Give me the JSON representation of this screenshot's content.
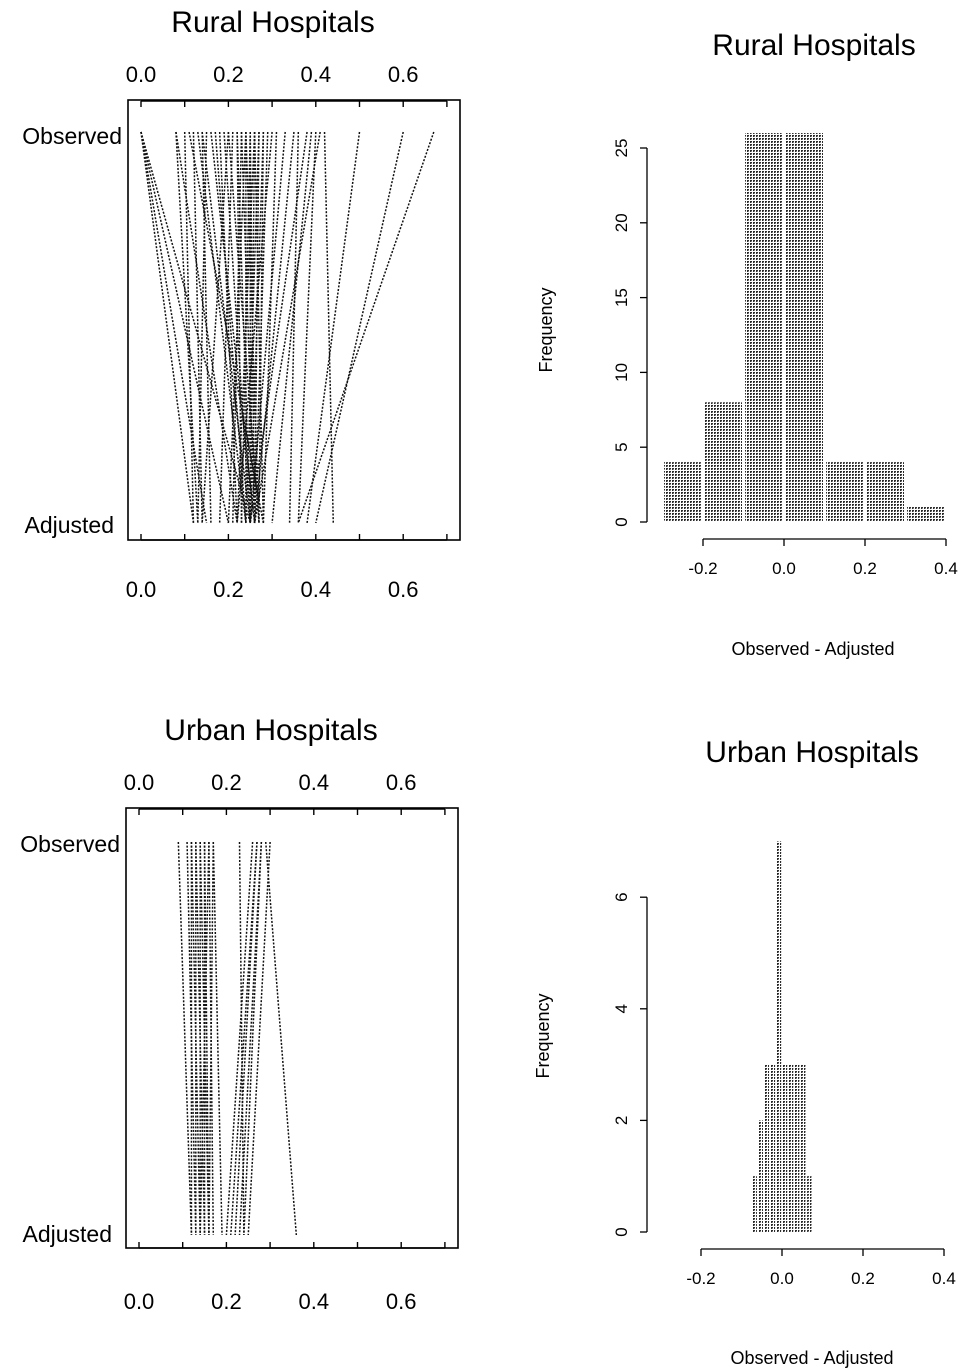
{
  "panels": {
    "rural_slope": {
      "title": "Rural Hospitals",
      "top_label": "Observed",
      "bottom_label": "Adjusted",
      "ticks": [
        "0.0",
        "0.2",
        "0.4",
        "0.6"
      ]
    },
    "rural_hist": {
      "title": "Rural Hospitals",
      "ylabel": "Frequency",
      "xlabel": "Observed - Adjusted",
      "xticks": [
        "-0.2",
        "0.0",
        "0.2",
        "0.4"
      ],
      "yticks": [
        "0",
        "5",
        "10",
        "15",
        "20",
        "25"
      ]
    },
    "urban_slope": {
      "title": "Urban Hospitals",
      "top_label": "Observed",
      "bottom_label": "Adjusted",
      "ticks": [
        "0.0",
        "0.2",
        "0.4",
        "0.6"
      ]
    },
    "urban_hist": {
      "title": "Urban Hospitals",
      "ylabel": "Frequency",
      "xlabel": "Observed - Adjusted",
      "xticks": [
        "-0.2",
        "0.0",
        "0.2",
        "0.4"
      ],
      "yticks": [
        "0",
        "2",
        "4",
        "6"
      ]
    }
  },
  "chart_data": [
    {
      "type": "line",
      "title": "Rural Hospitals",
      "xlim": [
        0.0,
        0.7
      ],
      "line_style": "dashed",
      "series": [
        {
          "name": "Observed",
          "values": [
            0.0,
            0.0,
            0.0,
            0.0,
            0.08,
            0.08,
            0.1,
            0.11,
            0.12,
            0.13,
            0.14,
            0.14,
            0.15,
            0.16,
            0.17,
            0.18,
            0.19,
            0.2,
            0.2,
            0.21,
            0.22,
            0.22,
            0.23,
            0.23,
            0.24,
            0.24,
            0.24,
            0.25,
            0.25,
            0.25,
            0.26,
            0.26,
            0.26,
            0.27,
            0.27,
            0.28,
            0.28,
            0.29,
            0.3,
            0.31,
            0.33,
            0.35,
            0.36,
            0.38,
            0.39,
            0.4,
            0.41,
            0.42,
            0.5,
            0.6,
            0.67
          ]
        },
        {
          "name": "Adjusted",
          "values": [
            0.12,
            0.15,
            0.2,
            0.25,
            0.13,
            0.22,
            0.12,
            0.28,
            0.14,
            0.24,
            0.16,
            0.25,
            0.13,
            0.26,
            0.24,
            0.22,
            0.25,
            0.14,
            0.27,
            0.18,
            0.23,
            0.25,
            0.21,
            0.26,
            0.2,
            0.24,
            0.27,
            0.23,
            0.25,
            0.26,
            0.22,
            0.25,
            0.28,
            0.24,
            0.26,
            0.25,
            0.27,
            0.26,
            0.22,
            0.28,
            0.25,
            0.26,
            0.34,
            0.25,
            0.3,
            0.36,
            0.26,
            0.44,
            0.38,
            0.4,
            0.36
          ]
        }
      ]
    },
    {
      "type": "bar",
      "title": "Rural Hospitals",
      "xlabel": "Observed - Adjusted",
      "ylabel": "Frequency",
      "bins": [
        [
          -0.3,
          -0.2
        ],
        [
          -0.2,
          -0.1
        ],
        [
          -0.1,
          0.0
        ],
        [
          0.0,
          0.1
        ],
        [
          0.1,
          0.2
        ],
        [
          0.2,
          0.3
        ],
        [
          0.3,
          0.4
        ]
      ],
      "values": [
        4,
        8,
        26,
        26,
        4,
        4,
        1
      ],
      "xlim": [
        -0.3,
        0.4
      ],
      "ylim": [
        0,
        25
      ]
    },
    {
      "type": "line",
      "title": "Urban Hospitals",
      "xlim": [
        0.0,
        0.7
      ],
      "line_style": "dashed",
      "series": [
        {
          "name": "Observed",
          "values": [
            0.09,
            0.11,
            0.12,
            0.12,
            0.13,
            0.13,
            0.14,
            0.14,
            0.15,
            0.15,
            0.16,
            0.16,
            0.17,
            0.17,
            0.23,
            0.26,
            0.27,
            0.27,
            0.28,
            0.28,
            0.29,
            0.3
          ]
        },
        {
          "name": "Adjusted",
          "values": [
            0.12,
            0.13,
            0.12,
            0.14,
            0.13,
            0.15,
            0.14,
            0.16,
            0.15,
            0.16,
            0.14,
            0.17,
            0.16,
            0.19,
            0.24,
            0.2,
            0.21,
            0.22,
            0.23,
            0.24,
            0.36,
            0.25
          ]
        }
      ]
    },
    {
      "type": "bar",
      "title": "Urban Hospitals",
      "xlabel": "Observed - Adjusted",
      "ylabel": "Frequency",
      "bins": [
        [
          -0.075,
          -0.06
        ],
        [
          -0.06,
          -0.045
        ],
        [
          -0.045,
          -0.03
        ],
        [
          -0.03,
          -0.015
        ],
        [
          -0.015,
          0.0
        ],
        [
          0.0,
          0.015
        ],
        [
          0.015,
          0.03
        ],
        [
          0.03,
          0.045
        ],
        [
          0.045,
          0.06
        ],
        [
          0.06,
          0.075
        ]
      ],
      "values": [
        1,
        2,
        3,
        3,
        7,
        3,
        3,
        3,
        3,
        1
      ],
      "xlim": [
        -0.2,
        0.4
      ],
      "ylim": [
        0,
        6
      ]
    }
  ]
}
